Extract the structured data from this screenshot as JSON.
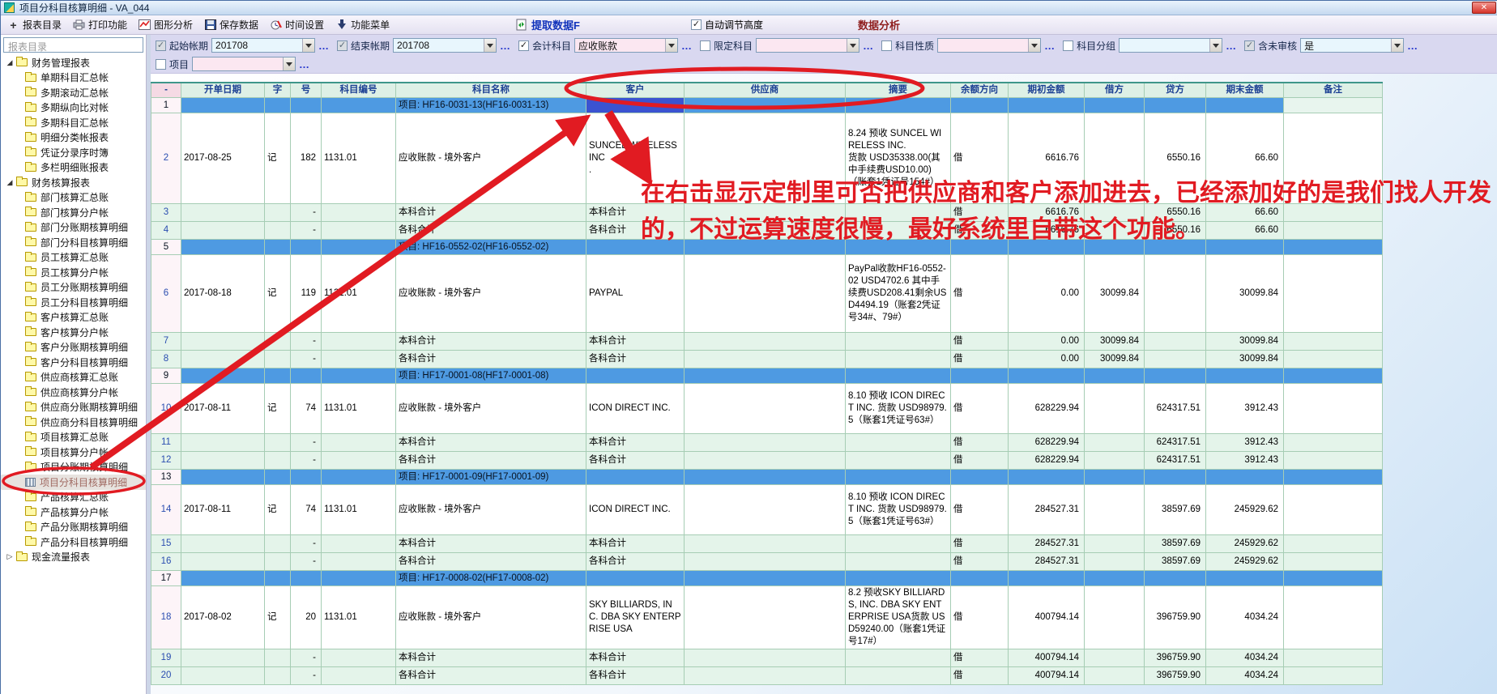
{
  "window": {
    "title": "项目分科目核算明细 - VA_044",
    "close_glyph": "✕"
  },
  "toolbar": {
    "items": [
      {
        "icon": "add-icon",
        "label": "报表目录"
      },
      {
        "icon": "printer-icon",
        "label": "打印功能"
      },
      {
        "icon": "chart-icon",
        "label": "图形分析"
      },
      {
        "icon": "save-icon",
        "label": "保存数据"
      },
      {
        "icon": "time-icon",
        "label": "时间设置"
      },
      {
        "icon": "menu-icon",
        "label": "功能菜单"
      }
    ],
    "extract_label": "提取数据F",
    "auto_height_label": "自动调节高度",
    "analysis_label": "数据分析"
  },
  "filters": {
    "row1": [
      {
        "label": "起始帐期",
        "checked": true,
        "disabled": true,
        "value": "201708",
        "tone": "cyan"
      },
      {
        "label": "结束帐期",
        "checked": true,
        "disabled": true,
        "value": "201708",
        "tone": "cyan"
      },
      {
        "label": "会计科目",
        "checked": true,
        "disabled": false,
        "value": "应收账款",
        "tone": "pink"
      },
      {
        "label": "限定科目",
        "checked": false,
        "disabled": false,
        "value": "",
        "tone": "pink"
      },
      {
        "label": "科目性质",
        "checked": false,
        "disabled": false,
        "value": "",
        "tone": "pink"
      },
      {
        "label": "科目分组",
        "checked": false,
        "disabled": false,
        "value": "",
        "tone": "cyan"
      },
      {
        "label": "含未审核",
        "checked": true,
        "disabled": true,
        "value": "是",
        "tone": "cyan"
      }
    ],
    "row2": [
      {
        "label": "项目",
        "checked": false,
        "disabled": false,
        "value": "",
        "tone": "pink"
      }
    ]
  },
  "sidebar": {
    "header": "报表目录",
    "items": [
      {
        "label": "财务管理报表",
        "level": 0,
        "icon": "folder",
        "expander": "open"
      },
      {
        "label": "单期科目汇总帐",
        "level": 1,
        "icon": "folder"
      },
      {
        "label": "多期滚动汇总帐",
        "level": 1,
        "icon": "folder"
      },
      {
        "label": "多期纵向比对帐",
        "level": 1,
        "icon": "folder"
      },
      {
        "label": "多期科目汇总帐",
        "level": 1,
        "icon": "folder"
      },
      {
        "label": "明细分类帐报表",
        "level": 1,
        "icon": "folder"
      },
      {
        "label": "凭证分录序时簿",
        "level": 1,
        "icon": "folder"
      },
      {
        "label": "多栏明细账报表",
        "level": 1,
        "icon": "folder"
      },
      {
        "label": "财务核算报表",
        "level": 0,
        "icon": "folder",
        "expander": "open"
      },
      {
        "label": "部门核算汇总账",
        "level": 1,
        "icon": "folder"
      },
      {
        "label": "部门核算分户帐",
        "level": 1,
        "icon": "folder"
      },
      {
        "label": "部门分账期核算明细",
        "level": 1,
        "icon": "folder"
      },
      {
        "label": "部门分科目核算明细",
        "level": 1,
        "icon": "folder"
      },
      {
        "label": "员工核算汇总账",
        "level": 1,
        "icon": "folder"
      },
      {
        "label": "员工核算分户帐",
        "level": 1,
        "icon": "folder"
      },
      {
        "label": "员工分账期核算明细",
        "level": 1,
        "icon": "folder"
      },
      {
        "label": "员工分科目核算明细",
        "level": 1,
        "icon": "folder"
      },
      {
        "label": "客户核算汇总账",
        "level": 1,
        "icon": "folder"
      },
      {
        "label": "客户核算分户帐",
        "level": 1,
        "icon": "folder"
      },
      {
        "label": "客户分账期核算明细",
        "level": 1,
        "icon": "folder"
      },
      {
        "label": "客户分科目核算明细",
        "level": 1,
        "icon": "folder"
      },
      {
        "label": "供应商核算汇总账",
        "level": 1,
        "icon": "folder"
      },
      {
        "label": "供应商核算分户帐",
        "level": 1,
        "icon": "folder"
      },
      {
        "label": "供应商分账期核算明细",
        "level": 1,
        "icon": "folder"
      },
      {
        "label": "供应商分科目核算明细",
        "level": 1,
        "icon": "folder"
      },
      {
        "label": "项目核算汇总账",
        "level": 1,
        "icon": "folder"
      },
      {
        "label": "项目核算分户帐",
        "level": 1,
        "icon": "folder"
      },
      {
        "label": "项目分账期核算明细",
        "level": 1,
        "icon": "folder"
      },
      {
        "label": "项目分科目核算明细",
        "level": 1,
        "icon": "report",
        "selected": true
      },
      {
        "label": "产品核算汇总账",
        "level": 1,
        "icon": "folder"
      },
      {
        "label": "产品核算分户帐",
        "level": 1,
        "icon": "folder"
      },
      {
        "label": "产品分账期核算明细",
        "level": 1,
        "icon": "folder"
      },
      {
        "label": "产品分科目核算明细",
        "level": 1,
        "icon": "folder"
      },
      {
        "label": "现金流量报表",
        "level": 0,
        "icon": "folder",
        "expander": "closed"
      }
    ]
  },
  "table": {
    "columns": [
      {
        "key": "num",
        "label": "-"
      },
      {
        "key": "date",
        "label": "开单日期"
      },
      {
        "key": "zi",
        "label": "字"
      },
      {
        "key": "hao",
        "label": "号"
      },
      {
        "key": "code",
        "label": "科目编号"
      },
      {
        "key": "name",
        "label": "科目名称"
      },
      {
        "key": "customer",
        "label": "客户"
      },
      {
        "key": "supplier",
        "label": "供应商"
      },
      {
        "key": "summary",
        "label": "摘要"
      },
      {
        "key": "dir",
        "label": "余额方向"
      },
      {
        "key": "begin",
        "label": "期初金额"
      },
      {
        "key": "debit",
        "label": "借方"
      },
      {
        "key": "credit",
        "label": "贷方"
      },
      {
        "key": "end",
        "label": "期末金额"
      },
      {
        "key": "note",
        "label": "备注"
      }
    ],
    "rows": [
      {
        "num": "1",
        "type": "group",
        "name": "项目: HF16-0031-13(HF16-0031-13)",
        "note_pale": true,
        "selected_cell": "customer"
      },
      {
        "num": "2",
        "type": "data",
        "date": "2017-08-25",
        "zi": "记",
        "hao": "182",
        "code": "1131.01",
        "name": "应收账款 - 境外客户",
        "customer": "SUNCEL WIRELESS INC\n.",
        "supplier": "",
        "summary": "8.24 预收 SUNCEL WIRELESS INC.\n货款 USD35338.00(其中手续费USD10.00)（账套1凭证号154#）",
        "dir": "借",
        "begin": "6616.76",
        "debit": "",
        "credit": "6550.16",
        "end": "66.60",
        "note": ""
      },
      {
        "num": "3",
        "type": "total",
        "hao": "-",
        "name": "本科合计",
        "customer": "本科合计",
        "dir": "借",
        "begin": "6616.76",
        "debit": "",
        "credit": "6550.16",
        "end": "66.60"
      },
      {
        "num": "4",
        "type": "total",
        "hao": "-",
        "name": "各科合计",
        "customer": "各科合计",
        "dir": "借",
        "begin": "6616.76",
        "debit": "",
        "credit": "6550.16",
        "end": "66.60"
      },
      {
        "num": "5",
        "type": "group",
        "name": "项目: HF16-0552-02(HF16-0552-02)"
      },
      {
        "num": "6",
        "type": "data",
        "date": "2017-08-18",
        "zi": "记",
        "hao": "119",
        "code": "1131.01",
        "name": "应收账款 - 境外客户",
        "customer": "PAYPAL",
        "supplier": "",
        "summary": "PayPal收款HF16-0552-02 USD4702.6 其中手续费USD208.41剩余USD4494.19（账套2凭证号34#、79#）",
        "dir": "借",
        "begin": "0.00",
        "debit": "30099.84",
        "credit": "",
        "end": "30099.84",
        "note": ""
      },
      {
        "num": "7",
        "type": "total",
        "hao": "-",
        "name": "本科合计",
        "customer": "本科合计",
        "dir": "借",
        "begin": "0.00",
        "debit": "30099.84",
        "credit": "",
        "end": "30099.84"
      },
      {
        "num": "8",
        "type": "total",
        "hao": "-",
        "name": "各科合计",
        "customer": "各科合计",
        "dir": "借",
        "begin": "0.00",
        "debit": "30099.84",
        "credit": "",
        "end": "30099.84"
      },
      {
        "num": "9",
        "type": "group",
        "name": "项目: HF17-0001-08(HF17-0001-08)"
      },
      {
        "num": "10",
        "type": "data",
        "date": "2017-08-11",
        "zi": "记",
        "hao": "74",
        "code": "1131.01",
        "name": "应收账款 - 境外客户",
        "customer": "ICON DIRECT INC.",
        "supplier": "",
        "summary": "8.10 预收 ICON DIRECT INC. 货款 USD98979.5（账套1凭证号63#）",
        "dir": "借",
        "begin": "628229.94",
        "debit": "",
        "credit": "624317.51",
        "end": "3912.43",
        "note": ""
      },
      {
        "num": "11",
        "type": "total",
        "hao": "-",
        "name": "本科合计",
        "customer": "本科合计",
        "dir": "借",
        "begin": "628229.94",
        "debit": "",
        "credit": "624317.51",
        "end": "3912.43"
      },
      {
        "num": "12",
        "type": "total",
        "hao": "-",
        "name": "各科合计",
        "customer": "各科合计",
        "dir": "借",
        "begin": "628229.94",
        "debit": "",
        "credit": "624317.51",
        "end": "3912.43"
      },
      {
        "num": "13",
        "type": "group",
        "name": "项目: HF17-0001-09(HF17-0001-09)"
      },
      {
        "num": "14",
        "type": "data",
        "date": "2017-08-11",
        "zi": "记",
        "hao": "74",
        "code": "1131.01",
        "name": "应收账款 - 境外客户",
        "customer": "ICON DIRECT INC.",
        "supplier": "",
        "summary": "8.10 预收 ICON DIRECT INC. 货款 USD98979.5（账套1凭证号63#）",
        "dir": "借",
        "begin": "284527.31",
        "debit": "",
        "credit": "38597.69",
        "end": "245929.62",
        "note": ""
      },
      {
        "num": "15",
        "type": "total",
        "hao": "-",
        "name": "本科合计",
        "customer": "本科合计",
        "dir": "借",
        "begin": "284527.31",
        "debit": "",
        "credit": "38597.69",
        "end": "245929.62"
      },
      {
        "num": "16",
        "type": "total",
        "hao": "-",
        "name": "各科合计",
        "customer": "各科合计",
        "dir": "借",
        "begin": "284527.31",
        "debit": "",
        "credit": "38597.69",
        "end": "245929.62"
      },
      {
        "num": "17",
        "type": "group",
        "name": "项目: HF17-0008-02(HF17-0008-02)"
      },
      {
        "num": "18",
        "type": "data",
        "date": "2017-08-02",
        "zi": "记",
        "hao": "20",
        "code": "1131.01",
        "name": "应收账款 - 境外客户",
        "customer": "SKY BILLIARDS, INC. DBA SKY ENTERPRISE USA",
        "supplier": "",
        "summary": "8.2 预收SKY BILLIARDS, INC. DBA SKY ENTERPRISE USA货款 USD59240.00（账套1凭证号17#）",
        "dir": "借",
        "begin": "400794.14",
        "debit": "",
        "credit": "396759.90",
        "end": "4034.24",
        "note": ""
      },
      {
        "num": "19",
        "type": "total",
        "hao": "-",
        "name": "本科合计",
        "customer": "本科合计",
        "dir": "借",
        "begin": "400794.14",
        "debit": "",
        "credit": "396759.90",
        "end": "4034.24"
      },
      {
        "num": "20",
        "type": "total",
        "hao": "-",
        "name": "各科合计",
        "customer": "各科合计",
        "dir": "借",
        "begin": "400794.14",
        "debit": "",
        "credit": "396759.90",
        "end": "4034.24"
      }
    ]
  },
  "annotations": {
    "line1": "在右击显示定制里可否把供应商和客户添加进去，已经添加好的是我们找人开发",
    "line2": "的，不过运算速度很慢，最好系统里自带这个功能。"
  },
  "colors": {
    "accent_red": "#e11b22",
    "group_blue": "#4e9ae2",
    "selected_cell_blue": "#3b53d1",
    "header_green": "#def0e6",
    "total_green": "#e4f4ea"
  }
}
